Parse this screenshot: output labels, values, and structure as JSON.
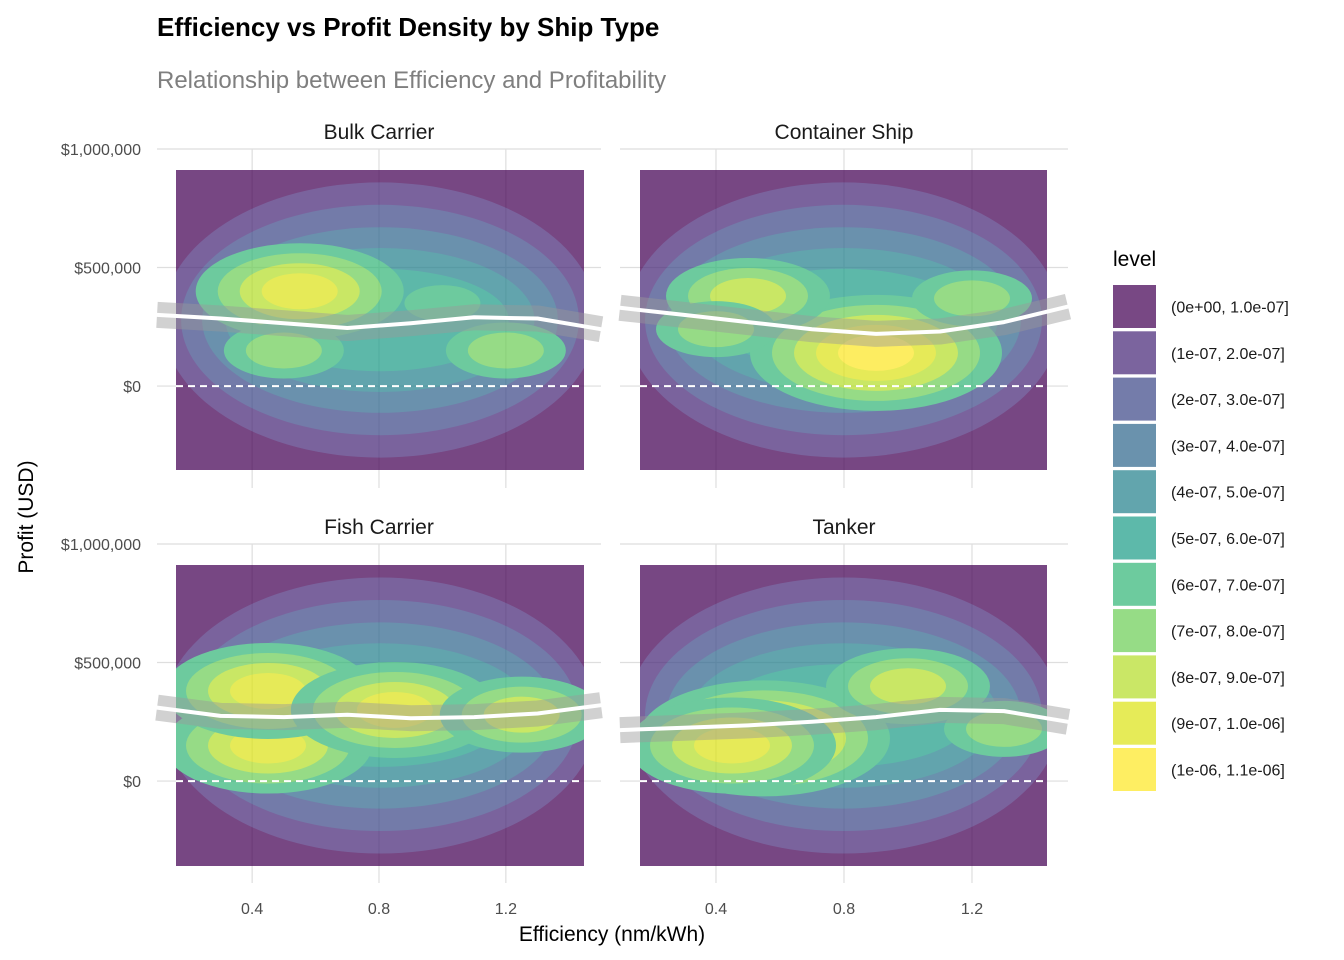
{
  "chart_data": {
    "type": "heatmap",
    "subtype": "filled-density-contour-faceted",
    "title": "Efficiency vs Profit Density by Ship Type",
    "subtitle": "Relationship between Efficiency and Profitability",
    "xlabel": "Efficiency (nm/kWh)",
    "ylabel": "Profit (USD)",
    "xlim": [
      0.1,
      1.5
    ],
    "ylim": [
      -430000,
      1000000
    ],
    "x_ticks": [
      0.4,
      0.8,
      1.2
    ],
    "x_tick_labels": [
      "0.4",
      "0.8",
      "1.2"
    ],
    "y_ticks": [
      0,
      500000,
      1000000
    ],
    "y_tick_labels": [
      "$0",
      "$500,000",
      "$1,000,000"
    ],
    "reference_line": {
      "y": 0,
      "style": "dashed",
      "color": "#ffffff"
    },
    "grid": true,
    "legend": {
      "title": "level",
      "position": "right",
      "entries": [
        {
          "label": "(0e+00, 1.0e-07]",
          "color": "#440154"
        },
        {
          "label": "(1e-07, 2.0e-07]",
          "color": "#482878"
        },
        {
          "label": "(2e-07, 3.0e-07]",
          "color": "#3e4989"
        },
        {
          "label": "(3e-07, 4.0e-07]",
          "color": "#31688e"
        },
        {
          "label": "(4e-07, 5.0e-07]",
          "color": "#26828e"
        },
        {
          "label": "(5e-07, 6.0e-07]",
          "color": "#1f9e89"
        },
        {
          "label": "(6e-07, 7.0e-07]",
          "color": "#35b779"
        },
        {
          "label": "(7e-07, 8.0e-07]",
          "color": "#6ece58"
        },
        {
          "label": "(8e-07, 9.0e-07]",
          "color": "#b5de2b"
        },
        {
          "label": "(9e-07, 1.0e-06]",
          "color": "#dde318"
        },
        {
          "label": "(1e-06, 1.1e-06]",
          "color": "#fde725"
        }
      ]
    },
    "facets": [
      {
        "name": "Bulk Carrier",
        "trend": {
          "x": [
            0.1,
            0.3,
            0.5,
            0.7,
            0.9,
            1.1,
            1.3,
            1.5
          ],
          "y": [
            300000,
            285000,
            265000,
            245000,
            265000,
            290000,
            285000,
            240000
          ]
        },
        "peaks": [
          {
            "x": 0.55,
            "y": 400000,
            "level": 9
          },
          {
            "x": 0.5,
            "y": 150000,
            "level": 7
          },
          {
            "x": 1.2,
            "y": 150000,
            "level": 7
          },
          {
            "x": 1.0,
            "y": 350000,
            "level": 6
          }
        ]
      },
      {
        "name": "Container Ship",
        "trend": {
          "x": [
            0.1,
            0.3,
            0.5,
            0.7,
            0.9,
            1.1,
            1.3,
            1.5
          ],
          "y": [
            330000,
            300000,
            270000,
            240000,
            220000,
            230000,
            270000,
            335000
          ]
        },
        "peaks": [
          {
            "x": 0.9,
            "y": 140000,
            "level": 10
          },
          {
            "x": 0.5,
            "y": 380000,
            "level": 8
          },
          {
            "x": 1.2,
            "y": 370000,
            "level": 7
          },
          {
            "x": 0.4,
            "y": 240000,
            "level": 7
          }
        ]
      },
      {
        "name": "Fish Carrier",
        "trend": {
          "x": [
            0.1,
            0.3,
            0.5,
            0.7,
            0.9,
            1.1,
            1.3,
            1.5
          ],
          "y": [
            310000,
            275000,
            270000,
            280000,
            265000,
            270000,
            285000,
            320000
          ]
        },
        "peaks": [
          {
            "x": 0.45,
            "y": 150000,
            "level": 9
          },
          {
            "x": 0.45,
            "y": 380000,
            "level": 9
          },
          {
            "x": 0.85,
            "y": 300000,
            "level": 9
          },
          {
            "x": 1.25,
            "y": 280000,
            "level": 8
          }
        ]
      },
      {
        "name": "Tanker",
        "trend": {
          "x": [
            0.1,
            0.3,
            0.5,
            0.7,
            0.9,
            1.1,
            1.3,
            1.5
          ],
          "y": [
            215000,
            225000,
            235000,
            250000,
            270000,
            300000,
            295000,
            250000
          ]
        },
        "peaks": [
          {
            "x": 0.55,
            "y": 180000,
            "level": 10
          },
          {
            "x": 0.45,
            "y": 150000,
            "level": 9
          },
          {
            "x": 1.0,
            "y": 400000,
            "level": 8
          },
          {
            "x": 1.3,
            "y": 220000,
            "level": 7
          }
        ]
      }
    ]
  }
}
